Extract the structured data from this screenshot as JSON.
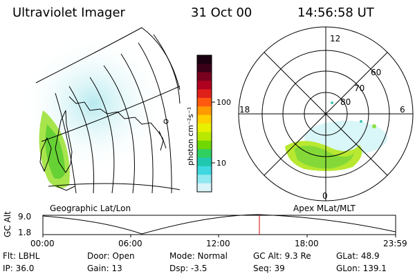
{
  "header": {
    "instrument": "Ultraviolet Imager",
    "date": "31 Oct 00",
    "time": "14:56:58 UT"
  },
  "geo_panel": {
    "caption": "Geographic Lat/Lon"
  },
  "colorbar": {
    "unit_label": "photon cm⁻²s⁻¹",
    "ticks": [
      "100",
      "10"
    ],
    "colors": [
      "#1a0010",
      "#3a0018",
      "#7a0020",
      "#b00020",
      "#e0201a",
      "#ff5a10",
      "#ff9a00",
      "#ffd000",
      "#e8f000",
      "#b8e800",
      "#70d800",
      "#30d060",
      "#20c8b0",
      "#40d8e0",
      "#90e8f0",
      "#d8f4f8"
    ]
  },
  "polar_panel": {
    "caption": "Apex MLat/MLT",
    "mlt_labels": {
      "top": "12",
      "left": "18",
      "right": "6",
      "bottom": "0"
    },
    "lat_labels": [
      "60",
      "70",
      "80"
    ]
  },
  "gc_alt_panel": {
    "axis_title": "GC Alt",
    "y_ticks": [
      "9.0",
      "1.8"
    ],
    "x_ticks": [
      "00:00",
      "06:00",
      "12:00",
      "18:00",
      "23:59"
    ],
    "marker_color": "#d00000"
  },
  "info": {
    "flt": "Flt: LBHL",
    "door": "Door: Open",
    "mode": "Mode: Normal",
    "gc_alt": "GC Alt: 9.3 Re",
    "glat": "GLat:  48.9",
    "ip": "IP: 36.0",
    "gain": "Gain: 13",
    "dsp": "Dsp:   -3.5",
    "seq": "Seq: 39",
    "glon": "GLon: 139.1"
  }
}
